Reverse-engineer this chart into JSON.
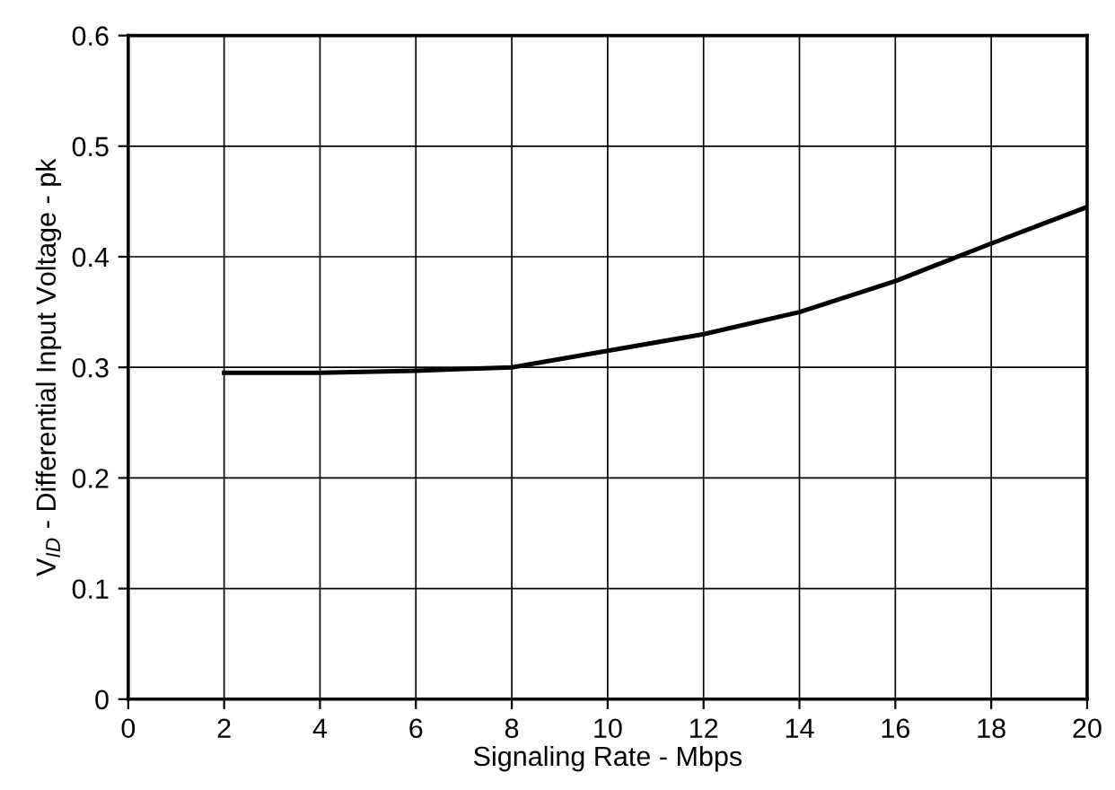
{
  "chart_data": {
    "type": "line",
    "xlabel": "Signaling Rate - Mbps",
    "ylabel": "V$_{ID}$ - Differential Input Voltage - pk",
    "x": [
      2,
      4,
      6,
      8,
      10,
      12,
      14,
      16,
      18,
      20
    ],
    "series": [
      {
        "color": "#000000",
        "values": [
          0.295,
          0.295,
          0.297,
          0.3,
          0.315,
          0.33,
          0.35,
          0.378,
          0.412,
          0.445
        ]
      }
    ],
    "xlim": [
      0,
      20
    ],
    "xticks": [
      0,
      2,
      4,
      6,
      8,
      10,
      12,
      14,
      16,
      18,
      20
    ],
    "ylim": [
      0,
      0.6
    ],
    "yticks": [
      0,
      0.1,
      0.2,
      0.3,
      0.4,
      0.5,
      0.6
    ],
    "grid": true,
    "marker": "none",
    "line_style": "solid"
  }
}
